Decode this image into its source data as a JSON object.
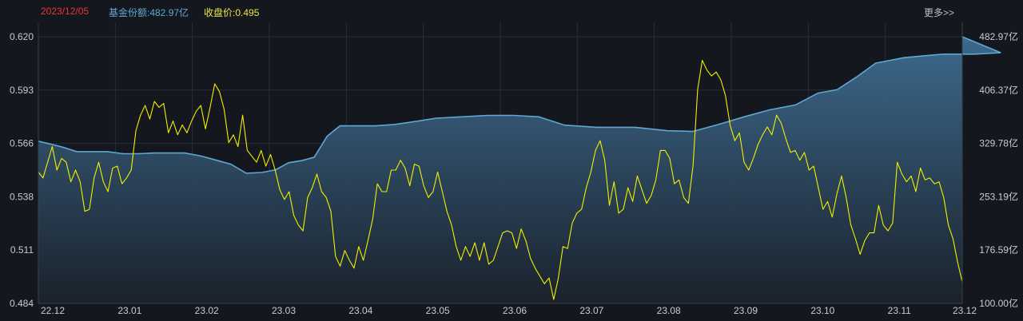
{
  "header": {
    "date": "2023/12/05",
    "share_text": "基金份额:482.97亿",
    "close_text": "收盘价:0.495",
    "more_label": "更多>>"
  },
  "colors": {
    "background": "#14171d",
    "grid": "#2a2f38",
    "share_line": "#5fa8d3",
    "price_line": "#f0f000",
    "date": "#e8353b"
  },
  "chart_data": {
    "type": "line",
    "x_axis": {
      "ticks": [
        "22.12",
        "23.01",
        "23.02",
        "23.03",
        "23.04",
        "23.05",
        "23.06",
        "23.07",
        "23.08",
        "23.09",
        "23.10",
        "23.11",
        "23.12"
      ]
    },
    "y_left": {
      "label": "",
      "ylim": [
        0.484,
        0.62
      ],
      "ticks": [
        "0.620",
        "0.593",
        "0.566",
        "0.538",
        "0.511",
        "0.484"
      ]
    },
    "y_right": {
      "label": "",
      "ylim": [
        100.0,
        482.97
      ],
      "ticks": [
        "482.97亿",
        "406.37亿",
        "329.78亿",
        "253.19亿",
        "176.59亿",
        "100.00亿"
      ]
    },
    "grid": true,
    "series": [
      {
        "name": "基金份额",
        "axis": "right",
        "style": "area",
        "points": [
          [
            "22.12",
            333
          ],
          [
            "22.12",
            325
          ],
          [
            "22.12",
            318
          ],
          [
            "22.12",
            318
          ],
          [
            "22.12",
            318
          ],
          [
            "23.01",
            315
          ],
          [
            "23.01",
            315
          ],
          [
            "23.01",
            316
          ],
          [
            "23.01",
            316
          ],
          [
            "23.01",
            316
          ],
          [
            "23.02",
            312
          ],
          [
            "23.02",
            306
          ],
          [
            "23.02",
            300
          ],
          [
            "23.02",
            287
          ],
          [
            "23.02",
            288
          ],
          [
            "23.03",
            292
          ],
          [
            "23.03",
            302
          ],
          [
            "23.03",
            305
          ],
          [
            "23.03",
            310
          ],
          [
            "23.03",
            340
          ],
          [
            "23.03",
            355
          ],
          [
            "23.04",
            355
          ],
          [
            "23.04",
            355
          ],
          [
            "23.04",
            357
          ],
          [
            "23.04",
            361
          ],
          [
            "23.05",
            366
          ],
          [
            "23.05",
            368
          ],
          [
            "23.05",
            370
          ],
          [
            "23.06",
            370
          ],
          [
            "23.06",
            368
          ],
          [
            "23.06",
            356
          ],
          [
            "23.07",
            353
          ],
          [
            "23.07",
            353
          ],
          [
            "23.08",
            348
          ],
          [
            "23.08",
            347
          ],
          [
            "23.08",
            357
          ],
          [
            "23.09",
            368
          ],
          [
            "23.09",
            378
          ],
          [
            "23.09",
            385
          ],
          [
            "23.10",
            402
          ],
          [
            "23.10",
            407
          ],
          [
            "23.10",
            425
          ],
          [
            "23.10",
            445
          ],
          [
            "23.11",
            453
          ],
          [
            "23.11",
            458
          ],
          [
            "23.12",
            458
          ],
          [
            "23.12",
            460
          ],
          [
            "23.12",
            482.97
          ]
        ]
      },
      {
        "name": "收盘价",
        "axis": "left",
        "style": "line",
        "values": [
          0.551,
          0.548,
          0.556,
          0.564,
          0.552,
          0.558,
          0.556,
          0.546,
          0.552,
          0.546,
          0.531,
          0.532,
          0.548,
          0.556,
          0.546,
          0.541,
          0.553,
          0.554,
          0.545,
          0.548,
          0.552,
          0.572,
          0.58,
          0.585,
          0.578,
          0.587,
          0.584,
          0.586,
          0.571,
          0.577,
          0.57,
          0.575,
          0.571,
          0.577,
          0.582,
          0.585,
          0.573,
          0.584,
          0.596,
          0.592,
          0.583,
          0.566,
          0.57,
          0.564,
          0.58,
          0.562,
          0.559,
          0.556,
          0.562,
          0.554,
          0.56,
          0.552,
          0.542,
          0.537,
          0.541,
          0.529,
          0.524,
          0.521,
          0.538,
          0.543,
          0.55,
          0.541,
          0.538,
          0.531,
          0.508,
          0.503,
          0.511,
          0.506,
          0.502,
          0.513,
          0.506,
          0.516,
          0.527,
          0.545,
          0.541,
          0.541,
          0.552,
          0.552,
          0.557,
          0.553,
          0.544,
          0.555,
          0.554,
          0.544,
          0.538,
          0.541,
          0.551,
          0.541,
          0.531,
          0.524,
          0.513,
          0.506,
          0.513,
          0.508,
          0.515,
          0.506,
          0.515,
          0.504,
          0.506,
          0.513,
          0.52,
          0.521,
          0.52,
          0.512,
          0.522,
          0.516,
          0.507,
          0.502,
          0.498,
          0.494,
          0.497,
          0.486,
          0.497,
          0.513,
          0.512,
          0.525,
          0.53,
          0.532,
          0.543,
          0.551,
          0.562,
          0.567,
          0.557,
          0.534,
          0.546,
          0.53,
          0.532,
          0.543,
          0.536,
          0.549,
          0.542,
          0.535,
          0.539,
          0.547,
          0.562,
          0.562,
          0.558,
          0.545,
          0.547,
          0.538,
          0.535,
          0.554,
          0.593,
          0.608,
          0.603,
          0.6,
          0.602,
          0.598,
          0.59,
          0.575,
          0.567,
          0.571,
          0.556,
          0.552,
          0.558,
          0.565,
          0.57,
          0.574,
          0.57,
          0.58,
          0.576,
          0.568,
          0.561,
          0.562,
          0.557,
          0.561,
          0.552,
          0.554,
          0.543,
          0.532,
          0.536,
          0.528,
          0.54,
          0.549,
          0.538,
          0.524,
          0.517,
          0.509,
          0.516,
          0.52,
          0.52,
          0.534,
          0.524,
          0.521,
          0.525,
          0.556,
          0.55,
          0.546,
          0.549,
          0.541,
          0.553,
          0.547,
          0.548,
          0.545,
          0.546,
          0.538,
          0.524,
          0.517,
          0.505,
          0.495
        ]
      }
    ]
  }
}
